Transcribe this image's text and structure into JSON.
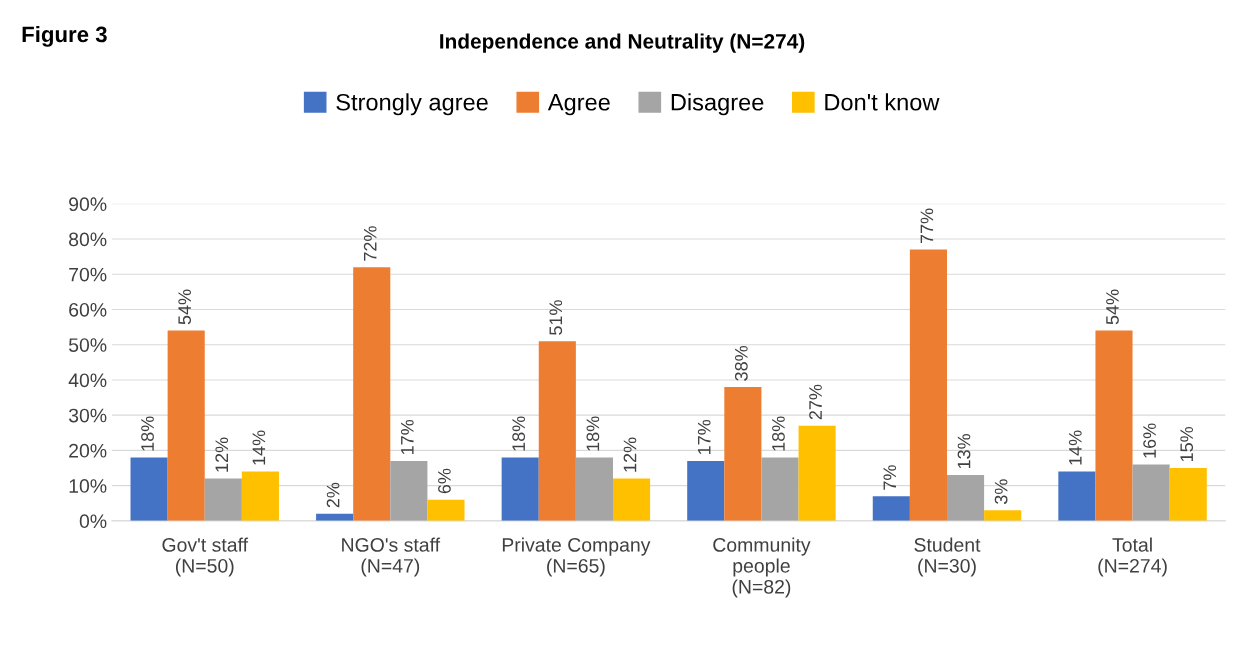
{
  "chart_data": {
    "type": "bar",
    "title": "Independence and Neutrality (N=274)",
    "annotations": [
      "Figure 3"
    ],
    "categories": [
      "Gov't staff\n(N=50)",
      "NGO's staff\n(N=47)",
      "Private Company\n(N=65)",
      "Community\npeople\n(N=82)",
      "Student\n(N=30)",
      "Total\n(N=274)"
    ],
    "series": [
      {
        "name": "Strongly agree",
        "color": "#4472c4",
        "values": [
          18,
          2,
          18,
          17,
          7,
          14
        ],
        "value_labels": [
          "18%",
          "2%",
          "18%",
          "17%",
          "7%",
          "14%"
        ]
      },
      {
        "name": "Agree",
        "color": "#ed7d31",
        "values": [
          54,
          72,
          51,
          38,
          77,
          54
        ],
        "value_labels": [
          "54%",
          "72%",
          "51%",
          "38%",
          "77%",
          "54%"
        ]
      },
      {
        "name": "Disagree",
        "color": "#a5a5a5",
        "values": [
          12,
          17,
          18,
          18,
          13,
          16
        ],
        "value_labels": [
          "12%",
          "17%",
          "18%",
          "18%",
          "13%",
          "16%"
        ]
      },
      {
        "name": "Don't know",
        "color": "#ffc000",
        "values": [
          14,
          6,
          12,
          27,
          3,
          15
        ],
        "value_labels": [
          "14%",
          "6%",
          "12%",
          "27%",
          "3%",
          "15%"
        ]
      }
    ],
    "ylim": [
      0,
      90
    ],
    "yticks": [
      {
        "value": 0,
        "label": "0%"
      },
      {
        "value": 10,
        "label": "10%"
      },
      {
        "value": 20,
        "label": "20%"
      },
      {
        "value": 30,
        "label": "30%"
      },
      {
        "value": 40,
        "label": "40%"
      },
      {
        "value": 50,
        "label": "50%"
      },
      {
        "value": 60,
        "label": "60%"
      },
      {
        "value": 70,
        "label": "70%"
      },
      {
        "value": 80,
        "label": "80%"
      },
      {
        "value": 90,
        "label": "90%"
      }
    ],
    "grid": "y",
    "legend": "top"
  }
}
